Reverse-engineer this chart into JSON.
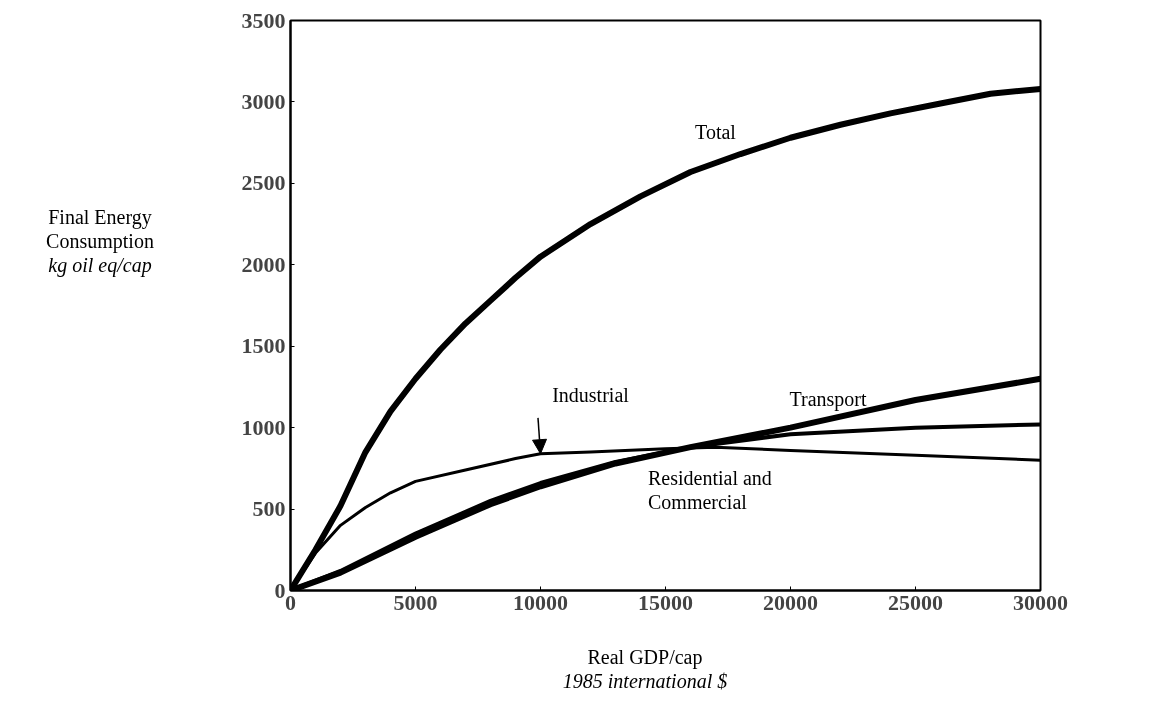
{
  "chart_data": {
    "type": "line",
    "xlabel": "Real GDP/cap\n1985 international $",
    "ylabel": "Final Energy\nConsumption\nkg oil eq/cap",
    "xlim": [
      0,
      30000
    ],
    "xticks": [
      0,
      5000,
      10000,
      15000,
      20000,
      25000,
      30000
    ],
    "ylim": [
      0,
      3500
    ],
    "yticks": [
      0,
      500,
      1000,
      1500,
      2000,
      2500,
      3000,
      3500
    ],
    "grid": false,
    "marker": "none",
    "line_style": "solid",
    "series": [
      {
        "name": "Total",
        "color": "#000000",
        "x": [
          0,
          1000,
          2000,
          3000,
          4000,
          5000,
          6000,
          7000,
          8000,
          9000,
          10000,
          12000,
          14000,
          16000,
          18000,
          20000,
          22000,
          24000,
          26000,
          28000,
          30000
        ],
        "values": [
          0,
          250,
          520,
          850,
          1100,
          1300,
          1480,
          1640,
          1780,
          1920,
          2050,
          2250,
          2420,
          2570,
          2680,
          2780,
          2860,
          2930,
          2990,
          3050,
          3080
        ]
      },
      {
        "name": "Industrial",
        "color": "#000000",
        "x": [
          0,
          1000,
          2000,
          3000,
          4000,
          5000,
          7000,
          9000,
          10000,
          12000,
          15000,
          17000,
          20000,
          25000,
          30000
        ],
        "values": [
          0,
          230,
          400,
          510,
          600,
          670,
          740,
          810,
          840,
          850,
          870,
          880,
          860,
          830,
          800
        ]
      },
      {
        "name": "Transport",
        "color": "#000000",
        "x": [
          0,
          2000,
          5000,
          8000,
          10000,
          13000,
          16000,
          20000,
          25000,
          30000
        ],
        "values": [
          0,
          110,
          330,
          530,
          640,
          780,
          880,
          1000,
          1170,
          1300
        ]
      },
      {
        "name": "Residential and\nCommercial",
        "color": "#000000",
        "x": [
          0,
          2000,
          5000,
          8000,
          10000,
          13000,
          16000,
          20000,
          25000,
          30000
        ],
        "values": [
          0,
          120,
          350,
          550,
          660,
          790,
          880,
          960,
          1000,
          1020
        ]
      }
    ]
  }
}
